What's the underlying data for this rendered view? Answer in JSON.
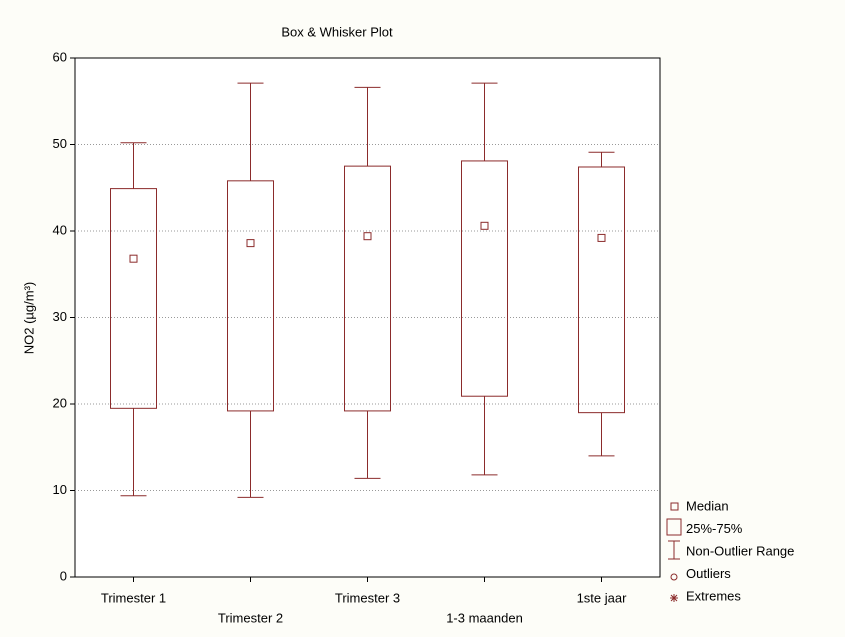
{
  "chart_data": {
    "type": "box",
    "title": "Box & Whisker Plot",
    "y_label": "NO2 (µg/m³)",
    "categories": [
      "Trimester 1",
      "Trimester 2",
      "Trimester 3",
      "1-3 maanden",
      "1ste jaar"
    ],
    "boxes": [
      {
        "min": 9.4,
        "q1": 19.5,
        "median": 36.8,
        "q3": 44.9,
        "max": 50.2
      },
      {
        "min": 9.2,
        "q1": 19.2,
        "median": 38.6,
        "q3": 45.8,
        "max": 57.1
      },
      {
        "min": 11.4,
        "q1": 19.2,
        "median": 39.4,
        "q3": 47.5,
        "max": 56.6
      },
      {
        "min": 11.8,
        "q1": 20.9,
        "median": 40.6,
        "q3": 48.1,
        "max": 57.1
      },
      {
        "min": 14.0,
        "q1": 19.0,
        "median": 39.2,
        "q3": 47.4,
        "max": 49.1
      }
    ],
    "color": "#8b2b2b",
    "ylim": [
      0,
      60
    ],
    "yticks": [
      0,
      10,
      20,
      30,
      40,
      50,
      60
    ],
    "grid": true,
    "legend": [
      "Median",
      "25%-75%",
      "Non-Outlier Range",
      "Outliers",
      "Extremes"
    ]
  }
}
